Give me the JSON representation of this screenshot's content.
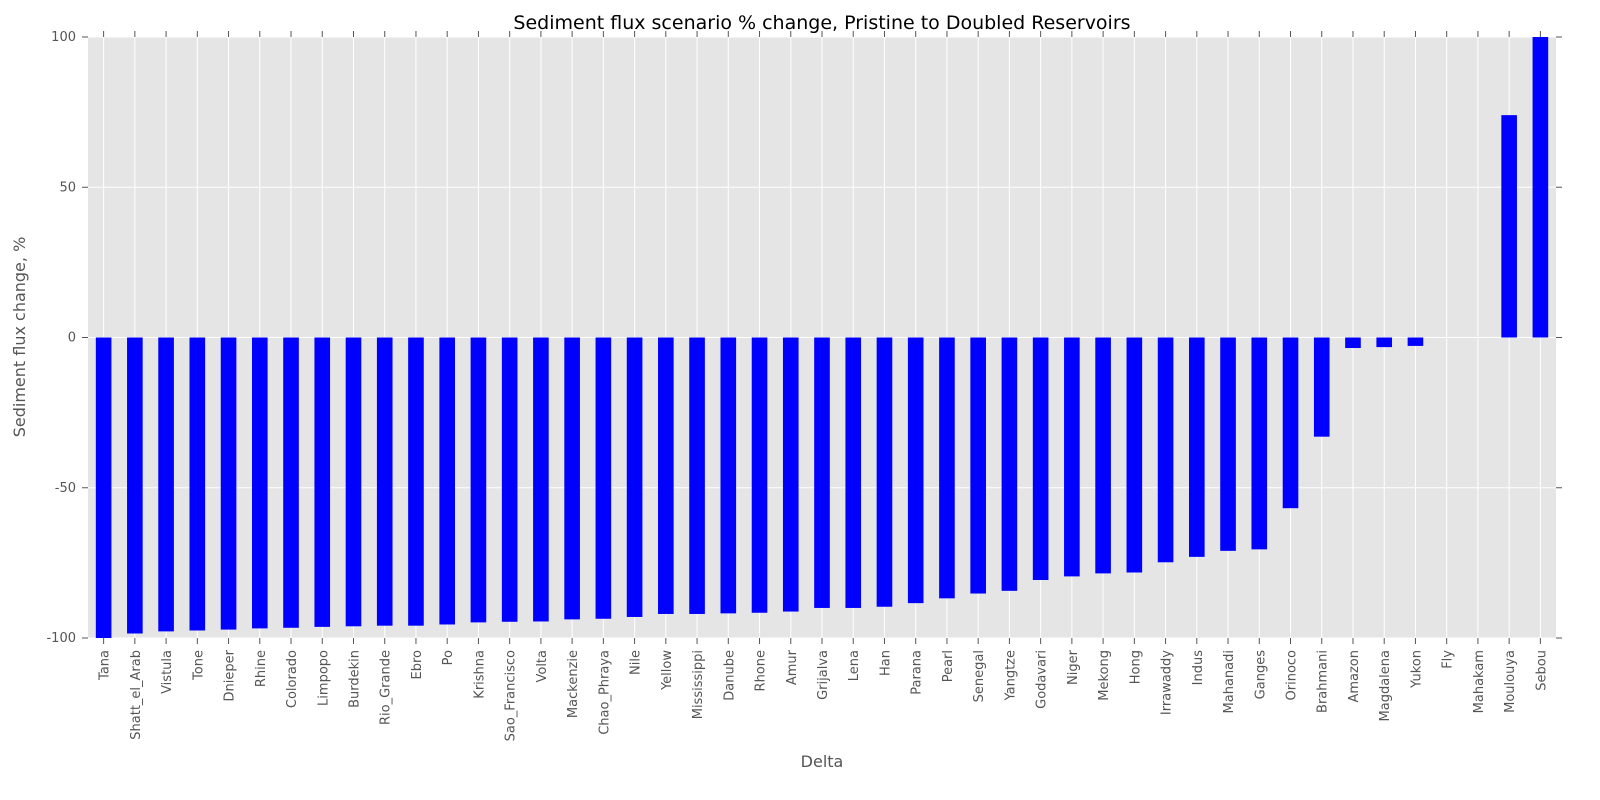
{
  "chart_data": {
    "type": "bar",
    "title": "Sediment flux scenario % change, Pristine to Doubled Reservoirs",
    "xlabel": "Delta",
    "ylabel": "Sediment flux change, %",
    "ylim": [
      -100,
      100
    ],
    "yticks": [
      100,
      50,
      0,
      -50,
      -100
    ],
    "grid": true,
    "legend": "none",
    "bar_color": "#0000ff",
    "background_color": "#e5e5e5",
    "categories": [
      "Tana",
      "Shatt_el_Arab",
      "Vistula",
      "Tone",
      "Dnieper",
      "Rhine",
      "Colorado",
      "Limpopo",
      "Burdekin",
      "Rio_Grande",
      "Ebro",
      "Po",
      "Krishna",
      "Sao_Francisco",
      "Volta",
      "Mackenzie",
      "Chao_Phraya",
      "Nile",
      "Yellow",
      "Mississippi",
      "Danube",
      "Rhone",
      "Amur",
      "Grijalva",
      "Lena",
      "Han",
      "Parana",
      "Pearl",
      "Senegal",
      "Yangtze",
      "Godavari",
      "Niger",
      "Mekong",
      "Hong",
      "Irrawaddy",
      "Indus",
      "Mahanadi",
      "Ganges",
      "Orinoco",
      "Brahmani",
      "Amazon",
      "Magdalena",
      "Yukon",
      "Fly",
      "Mahakam",
      "Moulouya",
      "Sebou"
    ],
    "values": [
      -100,
      -98.5,
      -97.8,
      -97.5,
      -97.2,
      -96.8,
      -96.6,
      -96.3,
      -96.1,
      -95.9,
      -95.9,
      -95.5,
      -94.8,
      -94.6,
      -94.5,
      -93.8,
      -93.6,
      -93.0,
      -92.0,
      -92.0,
      -91.8,
      -91.6,
      -91.2,
      -90.0,
      -90.0,
      -89.6,
      -88.4,
      -86.8,
      -85.2,
      -84.3,
      -80.7,
      -79.5,
      -78.5,
      -78.2,
      -74.8,
      -73.0,
      -71.0,
      -70.5,
      -56.8,
      -33.0,
      -3.5,
      -3.2,
      -2.8,
      0,
      0,
      74.0,
      100
    ]
  }
}
